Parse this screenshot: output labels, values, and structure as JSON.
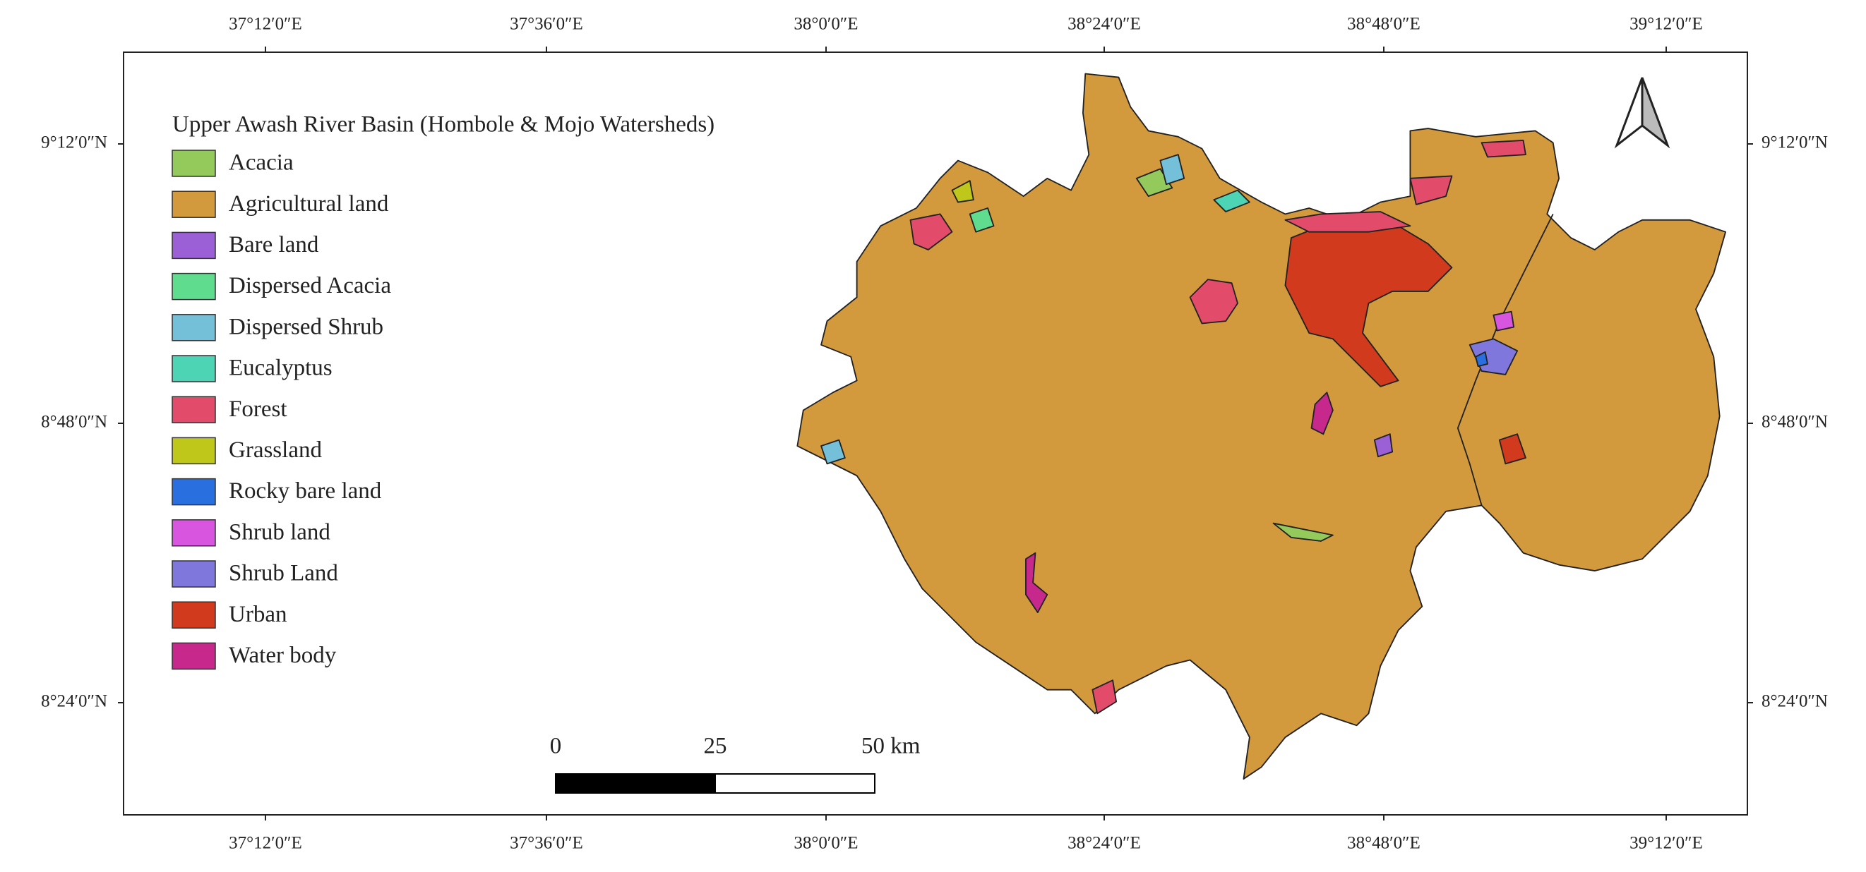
{
  "map": {
    "legend": {
      "title": "Upper Awash River Basin (Hombole & Mojo Watersheds)",
      "items": [
        {
          "label": "Acacia",
          "color": "#94c95c"
        },
        {
          "label": "Agricultural land",
          "color": "#d39a3d"
        },
        {
          "label": "Bare land",
          "color": "#9b5fd6"
        },
        {
          "label": "Dispersed Acacia",
          "color": "#5fdc8e"
        },
        {
          "label": "Dispersed Shrub",
          "color": "#74c0d9"
        },
        {
          "label": "Eucalyptus",
          "color": "#4dd4b4"
        },
        {
          "label": "Forest",
          "color": "#e34b6a"
        },
        {
          "label": "Grassland",
          "color": "#bfc81a"
        },
        {
          "label": "Rocky bare land",
          "color": "#2a6fe0"
        },
        {
          "label": "Shrub land",
          "color": "#d855e0"
        },
        {
          "label": "Shrub Land",
          "color": "#8077dc"
        },
        {
          "label": "Urban",
          "color": "#d13a1c"
        },
        {
          "label": "Water body",
          "color": "#c7288c"
        }
      ]
    },
    "x_labels": [
      "37°12′0″E",
      "37°36′0″E",
      "38°0′0″E",
      "38°24′0″E",
      "38°48′0″E",
      "39°12′0″E"
    ],
    "y_labels": [
      "9°12′0″N",
      "8°48′0″N",
      "8°24′0″N"
    ],
    "scale_bar": {
      "labels": [
        "0",
        "25",
        "50 km"
      ]
    }
  }
}
